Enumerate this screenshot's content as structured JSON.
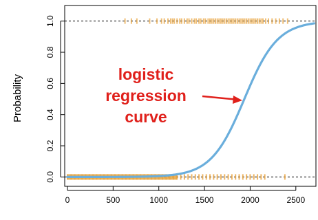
{
  "chart_data": {
    "type": "scatter",
    "title": "",
    "xlabel": "",
    "ylabel": "Probability",
    "xlim": [
      -30,
      2720
    ],
    "ylim": [
      -0.06,
      1.1
    ],
    "x_ticks": [
      0,
      500,
      1000,
      1500,
      2000,
      2500
    ],
    "y_ticks": [
      0.0,
      0.2,
      0.4,
      0.6,
      0.8,
      1.0
    ],
    "x_tick_labels": [
      "0",
      "500",
      "1000",
      "1500",
      "2000",
      "2500"
    ],
    "y_tick_labels": [
      "0.0",
      "0.2",
      "0.4",
      "0.6",
      "0.8",
      "1.0"
    ],
    "reference_lines": [
      0,
      1
    ],
    "grid": false,
    "colors": {
      "points": "#E8A33C",
      "curve": "#6AAEDC",
      "annotation": "#E0201B",
      "reference": "#000000"
    },
    "curve": {
      "name": "logistic regression curve",
      "b0": -10.65,
      "b1": 0.0055
    },
    "points_class1_x": [
      630,
      700,
      760,
      900,
      980,
      1030,
      1060,
      1100,
      1130,
      1150,
      1170,
      1200,
      1230,
      1250,
      1280,
      1310,
      1330,
      1360,
      1390,
      1410,
      1440,
      1460,
      1490,
      1510,
      1540,
      1560,
      1580,
      1600,
      1620,
      1640,
      1660,
      1680,
      1700,
      1720,
      1740,
      1760,
      1780,
      1800,
      1820,
      1840,
      1860,
      1880,
      1900,
      1920,
      1940,
      1960,
      1980,
      2000,
      2020,
      2040,
      2060,
      2080,
      2100,
      2120,
      2140,
      2170,
      2200,
      2240,
      2280,
      2320,
      2360,
      2410
    ],
    "points_class0_x": [
      0,
      40,
      80,
      120,
      160,
      200,
      240,
      280,
      320,
      360,
      400,
      440,
      480,
      520,
      560,
      600,
      640,
      680,
      720,
      760,
      800,
      840,
      880,
      920,
      960,
      1000,
      1040,
      1080,
      1120,
      1160,
      1200,
      1240,
      1280,
      1320,
      1360,
      1400,
      1440,
      1480,
      1520,
      1560,
      1600,
      1640,
      1680,
      1720,
      1760,
      1800,
      1840,
      1880,
      1920,
      1960,
      2000,
      2040,
      2080,
      2120,
      2160,
      2380
    ],
    "annotation": {
      "lines": [
        "logistic",
        "regression",
        "curve"
      ]
    }
  }
}
